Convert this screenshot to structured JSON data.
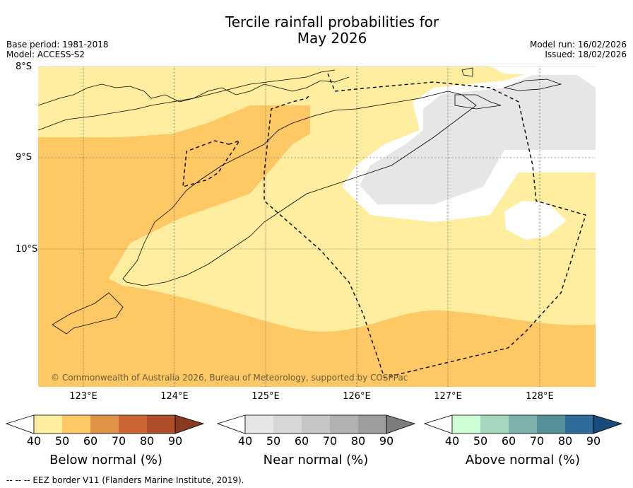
{
  "title_line1": "Tercile rainfall probabilities for",
  "title_line2": "May 2026",
  "base_period": "Base period: 1981-2018",
  "model": "Model: ACCESS-S2",
  "model_run": "Model run: 16/02/2026",
  "issued": "Issued: 18/02/2026",
  "lat_labels": [
    "8°S",
    "9°S",
    "10°S"
  ],
  "lon_labels": [
    "123°E",
    "124°E",
    "125°E",
    "126°E",
    "127°E",
    "128°E"
  ],
  "copyright": "© Commonwealth of Australia 2026, Bureau of Meteorology, supported by COSPPac",
  "footer": "-- -- -- EEZ border V11 (Flanders Marine Institute, 2019).",
  "colorbars": [
    {
      "label": "Below normal (%)",
      "ticks": [
        "40",
        "50",
        "60",
        "70",
        "80",
        "90"
      ],
      "colors": [
        "#ffeda0",
        "#fec965",
        "#e09448",
        "#cc6633",
        "#b04e2a",
        "#8a3a1e"
      ]
    },
    {
      "label": "Near normal (%)",
      "ticks": [
        "40",
        "50",
        "60",
        "70",
        "80",
        "90"
      ],
      "colors": [
        "#e6e6e6",
        "#d7d7d7",
        "#c6c6c6",
        "#b1b1b1",
        "#9d9d9d",
        "#7d7d7d"
      ]
    },
    {
      "label": "Above normal (%)",
      "ticks": [
        "40",
        "50",
        "60",
        "70",
        "80",
        "90"
      ],
      "colors": [
        "#ccffd3",
        "#a3d8bd",
        "#7db2ae",
        "#56909a",
        "#2f6b9a",
        "#1a4a7a"
      ]
    }
  ]
}
